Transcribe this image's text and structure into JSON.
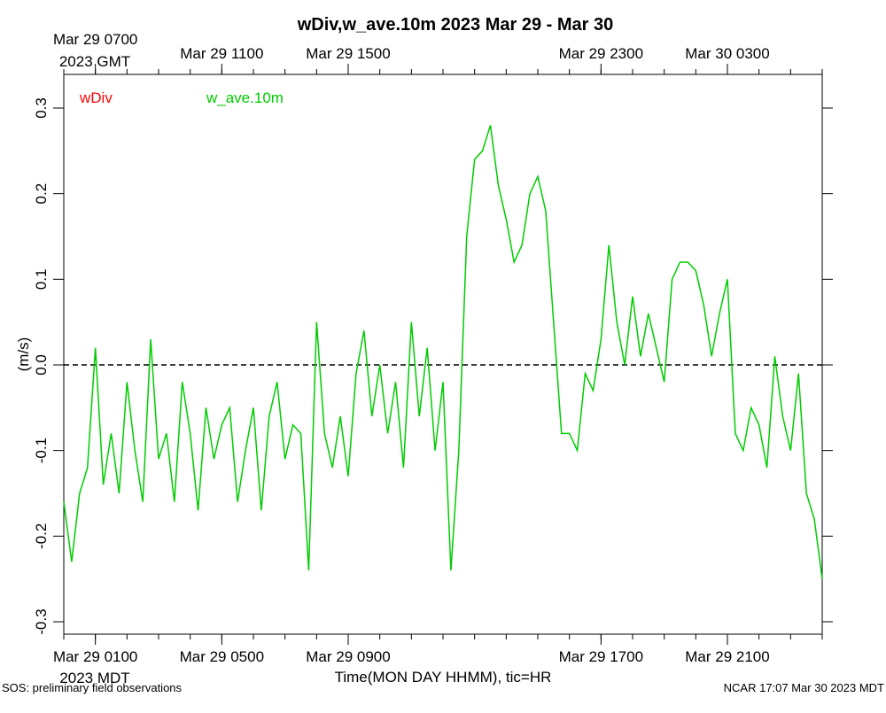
{
  "chart_data": {
    "type": "line",
    "title": "wDiv,w_ave.10m 2023 Mar 29 - Mar 30",
    "xlabel": "Time(MON DAY HHMM), tic=HR",
    "ylabel": "(m/s)",
    "x_year_label": "2023 MDT",
    "x2_year_label": "2023 GMT",
    "footer_left": "SOS: preliminary field observations",
    "footer_right": "NCAR 17:07 Mar 30 2023 MDT",
    "xlim": [
      0,
      24
    ],
    "ylim": [
      -0.3145,
      0.3393
    ],
    "xticks": [
      {
        "value": 1,
        "label": "Mar 29 0100"
      },
      {
        "value": 5,
        "label": "Mar 29 0500"
      },
      {
        "value": 9,
        "label": "Mar 29 0900"
      },
      {
        "value": 17,
        "label": "Mar 29 1700"
      },
      {
        "value": 21,
        "label": "Mar 29 2100"
      }
    ],
    "x2ticks": [
      {
        "value": 1,
        "label": "Mar 29 0700"
      },
      {
        "value": 5,
        "label": "Mar 29 1100"
      },
      {
        "value": 9,
        "label": "Mar 29 1500"
      },
      {
        "value": 17,
        "label": "Mar 29 2300"
      },
      {
        "value": 21,
        "label": "Mar 30 0300"
      }
    ],
    "xminorticks": [
      0,
      1,
      2,
      3,
      4,
      5,
      6,
      7,
      8,
      9,
      10,
      11,
      12,
      13,
      14,
      15,
      16,
      17,
      18,
      19,
      20,
      21,
      22,
      23,
      24
    ],
    "yticks": [
      0.3,
      0.2,
      0.1,
      {
        "value": 0,
        "label": "0.0"
      },
      -0.1,
      -0.2,
      -0.3
    ],
    "reference_line": 0,
    "grid": false,
    "x": [
      0,
      0.25,
      0.5,
      0.75,
      1,
      1.25,
      1.5,
      1.75,
      2,
      2.25,
      2.5,
      2.75,
      3,
      3.25,
      3.5,
      3.75,
      4,
      4.25,
      4.5,
      4.75,
      5,
      5.25,
      5.5,
      5.75,
      6,
      6.25,
      6.5,
      6.75,
      7,
      7.25,
      7.5,
      7.75,
      8,
      8.25,
      8.5,
      8.75,
      9,
      9.25,
      9.5,
      9.75,
      10,
      10.25,
      10.5,
      10.75,
      11,
      11.25,
      11.5,
      11.75,
      12,
      12.25,
      12.5,
      12.75,
      13,
      13.25,
      13.5,
      13.75,
      14,
      14.25,
      14.5,
      14.75,
      15,
      15.25,
      15.5,
      15.75,
      16,
      16.25,
      16.5,
      16.75,
      17,
      17.25,
      17.5,
      17.75,
      18,
      18.25,
      18.5,
      18.75,
      19,
      19.25,
      19.5,
      19.75,
      20,
      20.25,
      20.5,
      20.75,
      21,
      21.25,
      21.5,
      21.75,
      22,
      22.25,
      22.5,
      22.75,
      23,
      23.25,
      23.5,
      23.75,
      24
    ],
    "series": [
      {
        "name": "wDiv",
        "color": "#ff0000",
        "values": [
          null,
          null,
          null,
          null,
          null,
          null,
          null,
          null,
          null,
          null,
          null,
          null,
          null,
          null,
          null,
          null,
          null,
          null,
          null,
          null,
          null,
          null,
          null,
          null,
          null,
          null,
          null,
          null,
          null,
          null,
          null,
          null,
          null,
          null,
          null,
          null,
          null,
          null,
          null,
          null,
          null,
          null,
          null,
          null,
          null,
          null,
          null,
          null,
          null,
          null,
          null,
          null,
          null,
          null,
          null,
          null,
          null,
          null,
          null,
          null,
          null,
          null,
          null,
          null,
          null,
          null,
          null,
          null,
          null,
          null,
          null,
          null,
          null,
          null,
          null,
          null,
          null,
          null,
          null,
          null,
          null,
          null,
          null,
          null,
          null,
          null,
          null,
          null,
          null,
          null,
          null,
          null,
          null,
          null,
          null,
          null,
          null
        ]
      },
      {
        "name": "w_ave.10m",
        "color": "#00cc00",
        "values": [
          -0.16,
          -0.23,
          -0.15,
          -0.12,
          0.02,
          -0.14,
          -0.08,
          -0.15,
          -0.02,
          -0.1,
          -0.16,
          0.03,
          -0.11,
          -0.08,
          -0.16,
          -0.02,
          -0.08,
          -0.17,
          -0.05,
          -0.11,
          -0.07,
          -0.05,
          -0.16,
          -0.1,
          -0.05,
          -0.17,
          -0.06,
          -0.02,
          -0.11,
          -0.07,
          -0.08,
          -0.24,
          0.05,
          -0.08,
          -0.12,
          -0.06,
          -0.13,
          -0.01,
          0.04,
          -0.06,
          0.0,
          -0.08,
          -0.02,
          -0.12,
          0.05,
          -0.06,
          0.02,
          -0.1,
          -0.02,
          -0.24,
          -0.1,
          0.15,
          0.24,
          0.25,
          0.28,
          0.21,
          0.17,
          0.12,
          0.14,
          0.2,
          0.22,
          0.18,
          0.05,
          -0.08,
          -0.08,
          -0.1,
          -0.01,
          -0.03,
          0.03,
          0.14,
          0.05,
          0.0,
          0.08,
          0.01,
          0.06,
          0.02,
          -0.02,
          0.1,
          0.12,
          0.12,
          0.11,
          0.07,
          0.01,
          0.06,
          0.1,
          -0.08,
          -0.1,
          -0.05,
          -0.07,
          -0.12,
          0.01,
          -0.06,
          -0.1,
          -0.01,
          -0.15,
          -0.18,
          -0.25
        ]
      }
    ]
  }
}
